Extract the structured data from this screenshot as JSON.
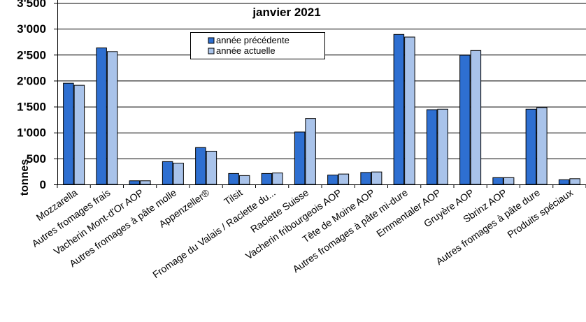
{
  "chart_data": {
    "type": "bar",
    "title": "janvier 2021",
    "ylabel": "tonnes",
    "xlabel": "",
    "ylim": [
      0,
      3500
    ],
    "yticks": [
      0,
      500,
      1000,
      1500,
      2000,
      2500,
      3000,
      3500
    ],
    "ytick_labels": [
      "0",
      "500",
      "1'000",
      "1'500",
      "2'000",
      "2'500",
      "3'000",
      "3'500"
    ],
    "grid": true,
    "legend_position": "top-center",
    "categories": [
      "Mozzarella",
      "Autres fromages frais",
      "Vacherin Mont-d'Or AOP",
      "Autres fromages à pâte molle",
      "Appenzeller®",
      "Tilsit",
      "Fromage du Valais / Raclette du...",
      "Raclette Suisse",
      "Vacherin fribourgeois AOP",
      "Tête de Moine AOP",
      "Autres fromages à pâte mi-dure",
      "Emmentaler AOP",
      "Gruyère AOP",
      "Sbrinz AOP",
      "Autres fromages à pâte dure",
      "Produits spéciaux"
    ],
    "series": [
      {
        "name": "année précédente",
        "color": "#2E6FD1",
        "values": [
          1950,
          2630,
          70,
          440,
          710,
          210,
          210,
          1010,
          180,
          230,
          2890,
          1440,
          2490,
          130,
          1450,
          90
        ]
      },
      {
        "name": "année actuelle",
        "color": "#A9C3EA",
        "values": [
          1910,
          2560,
          70,
          410,
          640,
          170,
          220,
          1270,
          200,
          240,
          2840,
          1450,
          2580,
          130,
          1480,
          110
        ]
      }
    ]
  }
}
